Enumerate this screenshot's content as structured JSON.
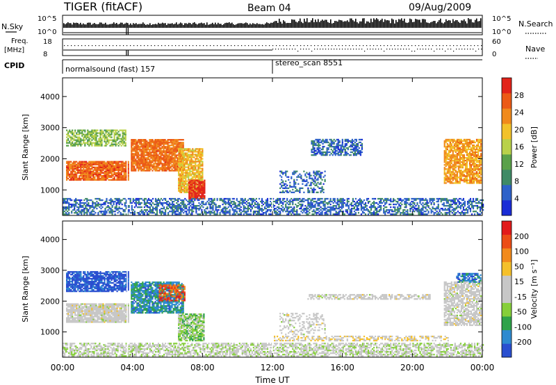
{
  "header": {
    "title": "TIGER (fitACF)",
    "beam": "Beam 04",
    "date": "09/Aug/2009"
  },
  "strip_nsky": {
    "left_label": "N.Sky",
    "right_label": "N.Search",
    "left_ticks": [
      "10^5",
      "10^0"
    ],
    "right_ticks": [
      "10^5",
      "10^0"
    ]
  },
  "strip_freq": {
    "left_label_1": "Freq.",
    "left_label_2": "[MHz]",
    "left_ticks": [
      "18",
      "8"
    ],
    "right_ticks": [
      "60",
      "0"
    ],
    "right_label": "Nave"
  },
  "cpid": {
    "label": "CPID",
    "segments": [
      {
        "name": "normalsound (fast) 157",
        "start_hour": 0
      },
      {
        "name": "stereo_scan 8551",
        "start_hour": 12
      }
    ]
  },
  "colors": {
    "power_scale": [
      "#1a2cd6",
      "#2e62c9",
      "#3f8a66",
      "#5aa14a",
      "#b9d14a",
      "#f2c22a",
      "#f08a1c",
      "#ec5a16",
      "#e2231a"
    ],
    "velocity_scale": [
      "#2a4fd0",
      "#2e8ad0",
      "#2fa24a",
      "#86cf3a",
      "#c7c7c7",
      "#c7c7c7",
      "#f5c02a",
      "#f28a1c",
      "#ec4d16",
      "#e21a1a"
    ]
  },
  "chart_data": [
    {
      "type": "heatmap",
      "title": "",
      "xlabel": "Time UT",
      "ylabel": "Slant Range [km]",
      "x_ticks": [
        "00:00",
        "04:00",
        "08:00",
        "12:00",
        "16:00",
        "20:00",
        "00:00"
      ],
      "xlim_hours": [
        0,
        24
      ],
      "y_ticks": [
        "4000",
        "3000",
        "2000",
        "1000"
      ],
      "ylim": [
        180,
        4600
      ],
      "colorbar": {
        "label": "Power [dB]",
        "ticks": [
          "28",
          "24",
          "20",
          "16",
          "12",
          "8",
          "4"
        ],
        "range": [
          0,
          32
        ]
      },
      "regions": [
        {
          "t0": 0.2,
          "t1": 3.8,
          "r0": 1300,
          "r1": 1900,
          "value": 26,
          "density": 0.9
        },
        {
          "t0": 0.2,
          "t1": 3.6,
          "r0": 2400,
          "r1": 2900,
          "value": 14,
          "density": 0.7
        },
        {
          "t0": 3.9,
          "t1": 6.9,
          "r0": 1600,
          "r1": 2600,
          "value": 25,
          "density": 0.9
        },
        {
          "t0": 6.6,
          "t1": 8.0,
          "r0": 900,
          "r1": 2300,
          "value": 20,
          "density": 0.8
        },
        {
          "t0": 7.2,
          "t1": 8.1,
          "r0": 700,
          "r1": 1300,
          "value": 30,
          "density": 0.9
        },
        {
          "t0": 12.4,
          "t1": 15.0,
          "r0": 900,
          "r1": 1600,
          "value": 6,
          "density": 0.35
        },
        {
          "t0": 14.2,
          "t1": 17.1,
          "r0": 2100,
          "r1": 2600,
          "value": 6,
          "density": 0.6
        },
        {
          "t0": 21.8,
          "t1": 23.9,
          "r0": 1200,
          "r1": 2600,
          "value": 22,
          "density": 0.8
        },
        {
          "t0": 0.0,
          "t1": 24.0,
          "r0": 200,
          "r1": 700,
          "value": 6,
          "density": 0.55
        }
      ]
    },
    {
      "type": "heatmap",
      "title": "",
      "xlabel": "Time UT",
      "ylabel": "Slant Range [km]",
      "x_ticks": [
        "00:00",
        "04:00",
        "08:00",
        "12:00",
        "16:00",
        "20:00",
        "00:00"
      ],
      "xlim_hours": [
        0,
        24
      ],
      "y_ticks": [
        "4000",
        "3000",
        "2000",
        "1000"
      ],
      "ylim": [
        180,
        4600
      ],
      "colorbar": {
        "label": "Velocity [m s⁻¹]",
        "ticks": [
          "200",
          "100",
          "50",
          "15",
          "-15",
          "-50",
          "-100",
          "-200"
        ],
        "range": [
          -250,
          250
        ]
      },
      "regions": [
        {
          "t0": 0.2,
          "t1": 3.8,
          "r0": 2300,
          "r1": 2950,
          "value": -230,
          "density": 0.8
        },
        {
          "t0": 0.2,
          "t1": 3.8,
          "r0": 1300,
          "r1": 1900,
          "value": 0,
          "density": 0.9
        },
        {
          "t0": 3.9,
          "t1": 6.9,
          "r0": 1600,
          "r1": 2600,
          "value": -160,
          "density": 0.8
        },
        {
          "t0": 5.5,
          "t1": 7.0,
          "r0": 2000,
          "r1": 2500,
          "value": 170,
          "density": 0.6
        },
        {
          "t0": 6.6,
          "t1": 8.1,
          "r0": 700,
          "r1": 1600,
          "value": -70,
          "density": 0.8
        },
        {
          "t0": 12.4,
          "t1": 15.0,
          "r0": 900,
          "r1": 1600,
          "value": 0,
          "density": 0.3
        },
        {
          "t0": 14.0,
          "t1": 21.0,
          "r0": 2050,
          "r1": 2200,
          "value": 0,
          "density": 0.6
        },
        {
          "t0": 21.8,
          "t1": 23.9,
          "r0": 1200,
          "r1": 2600,
          "value": 0,
          "density": 0.7
        },
        {
          "t0": 22.5,
          "t1": 23.9,
          "r0": 2600,
          "r1": 2900,
          "value": -180,
          "density": 0.7
        },
        {
          "t0": 12.0,
          "t1": 22.0,
          "r0": 700,
          "r1": 850,
          "value": 40,
          "density": 0.5
        },
        {
          "t0": 0.0,
          "t1": 24.0,
          "r0": 200,
          "r1": 650,
          "value": -25,
          "density": 0.6
        }
      ]
    }
  ]
}
